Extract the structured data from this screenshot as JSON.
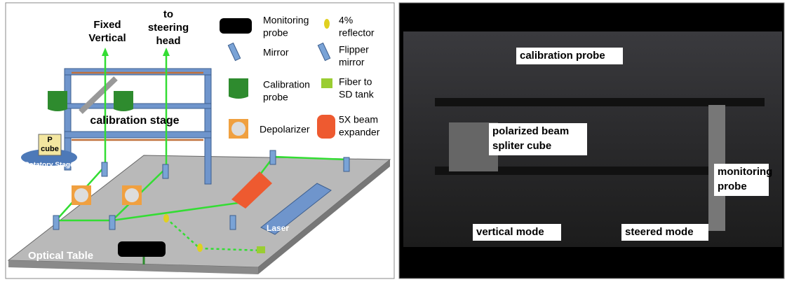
{
  "diagram": {
    "beams": [
      [
        "Fixed",
        "Vertical"
      ],
      [
        "to",
        "steering",
        "head"
      ]
    ],
    "legend": [
      [
        "Monitoring",
        "probe"
      ],
      [
        "4%",
        "reflector"
      ],
      [
        "Mirror"
      ],
      [
        "Flipper",
        "mirror"
      ],
      [
        "Calibration",
        "probe"
      ],
      [
        "Fiber to",
        "SD tank"
      ],
      [
        "Depolarizer"
      ],
      [
        "5X beam",
        "expander"
      ]
    ],
    "stage_label": "calibration stage",
    "p_cube": [
      "P",
      "cube"
    ],
    "rotatory_stage": "Rotatory Stage",
    "laser": "Laser",
    "table_label": "Optical Table"
  },
  "photo": {
    "labels": [
      [
        "calibration probe"
      ],
      [
        "polarized beam",
        "spliter cube"
      ],
      [
        "monitoring",
        "probe"
      ],
      [
        "vertical mode"
      ],
      [
        "steered mode"
      ]
    ]
  }
}
